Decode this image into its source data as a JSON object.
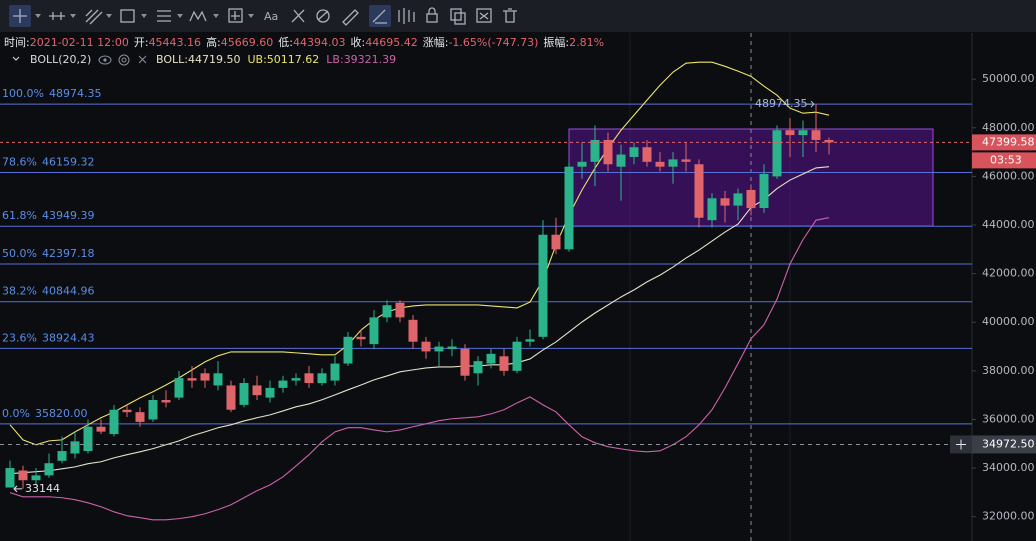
{
  "header": {
    "items": [
      {
        "label": "时间:",
        "value": "2021-02-11 12:00"
      },
      {
        "label": "开:",
        "value": "45443.16"
      },
      {
        "label": "高:",
        "value": "45669.60"
      },
      {
        "label": "低:",
        "value": "44394.03"
      },
      {
        "label": "收:",
        "value": "44695.42"
      },
      {
        "label": "涨幅:",
        "value": "-1.65%(-747.73)"
      },
      {
        "label": "振幅:",
        "value": "2.81%"
      }
    ]
  },
  "indicator": {
    "name": "BOLL(20,2)"
  },
  "chart_data": {
    "type": "candlestick",
    "up_color": "#2bb38c",
    "down_color": "#e0656b",
    "ylim": [
      31000,
      51900
    ],
    "yticks": [
      {
        "value": 32000,
        "label": "32000.00"
      },
      {
        "value": 34000,
        "label": "34000.00"
      },
      {
        "value": 36000,
        "label": "36000.00"
      },
      {
        "value": 38000,
        "label": "38000.00"
      },
      {
        "value": 40000,
        "label": "40000.00"
      },
      {
        "value": 42000,
        "label": "42000.00"
      },
      {
        "value": 44000,
        "label": "44000.00"
      },
      {
        "value": 46000,
        "label": "46000.00"
      },
      {
        "value": 48000,
        "label": "48000.00"
      },
      {
        "value": 50000,
        "label": "50000.00"
      }
    ],
    "ohlc": {
      "open": [
        33200,
        33900,
        33500,
        33700,
        34300,
        34600,
        34700,
        35700,
        35400,
        36400,
        36300,
        36000,
        36800,
        36900,
        37700,
        37900,
        37400,
        37400,
        36600,
        37400,
        36900,
        37300,
        37600,
        37900,
        37500,
        37600,
        38300,
        39400,
        39100,
        40200,
        40800,
        40100,
        39200,
        38800,
        38900,
        38900,
        37900,
        38300,
        38600,
        38000,
        39200,
        39400,
        43600,
        43000,
        46400,
        46600,
        47500,
        46400,
        46800,
        47200,
        46600,
        46400,
        46700,
        46500,
        44200,
        45100,
        44800,
        45443.16,
        44700,
        46000,
        47900,
        47700,
        47900,
        47500
      ],
      "high": [
        34300,
        34100,
        34000,
        34600,
        35300,
        35500,
        36000,
        36000,
        36600,
        36600,
        36500,
        37000,
        37200,
        38000,
        38200,
        38100,
        38400,
        37600,
        37700,
        37800,
        37600,
        37800,
        37900,
        38200,
        38100,
        38600,
        39600,
        39700,
        40500,
        40900,
        40900,
        40300,
        39400,
        39200,
        39300,
        39100,
        38600,
        38900,
        38900,
        39400,
        39700,
        44200,
        44300,
        46600,
        47400,
        48100,
        47800,
        47300,
        47400,
        47500,
        47000,
        47000,
        47400,
        46700,
        45300,
        45400,
        45500,
        45669.6,
        46500,
        48100,
        48400,
        48300,
        48974.35,
        47600
      ],
      "low": [
        33200,
        33144,
        33300,
        33600,
        34200,
        34400,
        34600,
        35400,
        35300,
        36100,
        35700,
        35900,
        36500,
        36800,
        37300,
        37300,
        37200,
        36300,
        36500,
        36800,
        36700,
        37100,
        37400,
        37300,
        37400,
        37400,
        38200,
        39000,
        38900,
        40000,
        40000,
        38900,
        38500,
        38200,
        38600,
        37600,
        37400,
        38100,
        37800,
        37900,
        39000,
        39300,
        42800,
        42900,
        45900,
        45600,
        46200,
        45000,
        46500,
        46400,
        46200,
        45700,
        46200,
        43900,
        43900,
        44100,
        44200,
        44394.03,
        44500,
        45900,
        46800,
        46800,
        47000,
        46900
      ],
      "close": [
        34000,
        33500,
        33700,
        34200,
        34700,
        35100,
        35700,
        35500,
        36400,
        36300,
        35900,
        36800,
        36700,
        37700,
        37600,
        37600,
        37900,
        36400,
        37500,
        37000,
        37300,
        37600,
        37700,
        37500,
        37900,
        38300,
        39400,
        39300,
        40200,
        40700,
        40200,
        39200,
        38800,
        39000,
        39000,
        37800,
        38400,
        38700,
        38000,
        39200,
        39300,
        43600,
        43000,
        46400,
        46600,
        47500,
        46500,
        46900,
        47200,
        46600,
        46400,
        46700,
        46600,
        44300,
        45100,
        44800,
        45300,
        44695.42,
        46100,
        47900,
        47700,
        47900,
        47500,
        47399.58
      ]
    },
    "series": [
      {
        "name": "BOLL:",
        "readout": "44719.50",
        "color": "#e6e2c6",
        "values": [
          33770,
          33810,
          33850,
          33890,
          33970,
          34050,
          34180,
          34260,
          34420,
          34550,
          34670,
          34800,
          34960,
          35120,
          35330,
          35490,
          35660,
          35780,
          35940,
          36070,
          36190,
          36350,
          36520,
          36640,
          36810,
          37010,
          37220,
          37420,
          37630,
          37790,
          37960,
          38040,
          38120,
          38160,
          38160,
          38200,
          38200,
          38250,
          38250,
          38330,
          38490,
          38860,
          39190,
          39600,
          40010,
          40380,
          40710,
          41040,
          41330,
          41660,
          41940,
          42270,
          42640,
          42970,
          43340,
          43710,
          44040,
          44719.5,
          45050,
          45500,
          45850,
          46100,
          46350,
          46400
        ]
      },
      {
        "name": "UB:",
        "readout": "50117.62",
        "color": "#ede46a",
        "values": [
          35780,
          35160,
          34960,
          35120,
          35160,
          35490,
          35780,
          36070,
          36310,
          36600,
          36890,
          37140,
          37420,
          37710,
          38040,
          38370,
          38620,
          38780,
          38780,
          38780,
          38780,
          38780,
          38740,
          38700,
          38660,
          38660,
          39070,
          39680,
          40100,
          40420,
          40590,
          40670,
          40710,
          40710,
          40710,
          40710,
          40710,
          40670,
          40630,
          40590,
          40830,
          41740,
          43180,
          44410,
          45440,
          46340,
          47160,
          47900,
          48520,
          49140,
          49750,
          50290,
          50660,
          50700,
          50700,
          50530,
          50330,
          50117.62,
          49710,
          49340,
          48810,
          48600,
          48640,
          48520
        ]
      },
      {
        "name": "LB:",
        "readout": "39321.39",
        "color": "#cc62a8",
        "values": [
          32990,
          32820,
          32820,
          32820,
          32780,
          32700,
          32570,
          32410,
          32200,
          32040,
          31960,
          31870,
          31870,
          31920,
          32000,
          32120,
          32290,
          32490,
          32780,
          33070,
          33310,
          33640,
          34090,
          34550,
          35080,
          35490,
          35660,
          35660,
          35570,
          35490,
          35570,
          35700,
          35820,
          35950,
          36030,
          36070,
          36110,
          36230,
          36400,
          36680,
          36930,
          36600,
          36310,
          35780,
          35290,
          35040,
          34880,
          34790,
          34710,
          34670,
          34710,
          34960,
          35290,
          35780,
          36400,
          37300,
          38300,
          39321.39,
          39900,
          40950,
          42400,
          43400,
          44200,
          44300
        ]
      }
    ],
    "fib_levels": [
      {
        "level": "100.0%",
        "price": 48974.35,
        "price_label": "48974.35"
      },
      {
        "level": "78.6%",
        "price": 46159.32,
        "price_label": "46159.32"
      },
      {
        "level": "61.8%",
        "price": 43949.39,
        "price_label": "43949.39"
      },
      {
        "level": "50.0%",
        "price": 42397.18,
        "price_label": "42397.18"
      },
      {
        "level": "38.2%",
        "price": 40844.96,
        "price_label": "40844.96"
      },
      {
        "level": "23.6%",
        "price": 38924.43,
        "price_label": "38924.43"
      },
      {
        "level": "0.0%",
        "price": 35820,
        "price_label": "35820.00"
      }
    ],
    "fib_color": "#5a6fd8",
    "markers": [
      {
        "value": 48974.35,
        "label": "48974.35"
      },
      {
        "value": 33144
      }
    ],
    "last_price": 47399.58,
    "countdown": "03:53",
    "crosshair": {
      "value": 34972.5,
      "label": "34972.50"
    }
  }
}
